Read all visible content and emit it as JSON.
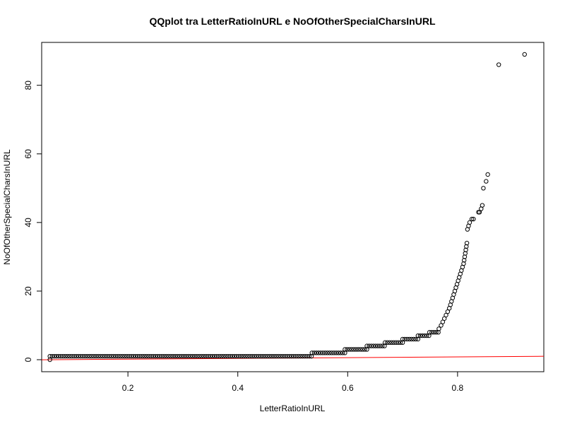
{
  "chart_data": {
    "type": "scatter",
    "title": "QQplot tra LetterRatioInURL e NoOfOtherSpecialCharsInURL",
    "xlabel": "LetterRatioInURL",
    "ylabel": "NoOfOtherSpecialCharsInURL",
    "xlim": [
      0.043,
      0.957
    ],
    "ylim": [
      -3.5,
      92.5
    ],
    "x_ticks": [
      0.2,
      0.4,
      0.6,
      0.8
    ],
    "x_tick_labels": [
      "0.2",
      "0.4",
      "0.6",
      "0.8"
    ],
    "y_ticks": [
      0,
      20,
      40,
      60,
      80
    ],
    "y_tick_labels": [
      "0",
      "20",
      "40",
      "60",
      "80"
    ],
    "grid": false,
    "legend": "none",
    "colors": {
      "points": "#000000",
      "reference_line": "#ff0000",
      "frame": "#000000"
    },
    "reference_line": {
      "x": [
        0.043,
        0.957
      ],
      "y": [
        -0.02,
        1.0
      ]
    },
    "point_runs": [
      {
        "y": 0,
        "x_start": 0.058,
        "x_end": 0.058,
        "step": 0.01
      },
      {
        "y": 1,
        "x_start": 0.058,
        "x_end": 0.535,
        "step": 0.004
      },
      {
        "y": 2,
        "x_start": 0.535,
        "x_end": 0.595,
        "step": 0.004
      },
      {
        "y": 3,
        "x_start": 0.595,
        "x_end": 0.635,
        "step": 0.004
      },
      {
        "y": 4,
        "x_start": 0.635,
        "x_end": 0.668,
        "step": 0.004
      },
      {
        "y": 5,
        "x_start": 0.668,
        "x_end": 0.7,
        "step": 0.004
      },
      {
        "y": 6,
        "x_start": 0.7,
        "x_end": 0.728,
        "step": 0.004
      },
      {
        "y": 7,
        "x_start": 0.728,
        "x_end": 0.749,
        "step": 0.004
      },
      {
        "y": 8,
        "x_start": 0.749,
        "x_end": 0.766,
        "step": 0.004
      }
    ],
    "curve_points": [
      [
        0.766,
        9
      ],
      [
        0.77,
        10
      ],
      [
        0.773,
        11
      ],
      [
        0.776,
        12
      ],
      [
        0.779,
        13
      ],
      [
        0.782,
        14
      ],
      [
        0.785,
        15
      ],
      [
        0.787,
        16
      ],
      [
        0.789,
        17
      ],
      [
        0.791,
        18
      ],
      [
        0.793,
        19
      ],
      [
        0.795,
        20
      ],
      [
        0.797,
        21
      ],
      [
        0.799,
        22
      ],
      [
        0.801,
        23
      ],
      [
        0.803,
        24
      ],
      [
        0.805,
        25
      ],
      [
        0.807,
        26
      ],
      [
        0.809,
        27
      ],
      [
        0.811,
        28
      ],
      [
        0.812,
        29
      ],
      [
        0.813,
        30
      ],
      [
        0.814,
        31
      ],
      [
        0.815,
        32
      ],
      [
        0.816,
        33
      ],
      [
        0.817,
        34
      ],
      [
        0.818,
        38
      ],
      [
        0.82,
        39
      ],
      [
        0.822,
        40
      ],
      [
        0.826,
        41
      ],
      [
        0.829,
        41
      ],
      [
        0.838,
        43
      ],
      [
        0.84,
        43
      ],
      [
        0.843,
        44
      ],
      [
        0.845,
        45
      ],
      [
        0.847,
        50
      ],
      [
        0.852,
        52
      ],
      [
        0.855,
        54
      ],
      [
        0.875,
        86
      ],
      [
        0.922,
        89
      ]
    ]
  }
}
